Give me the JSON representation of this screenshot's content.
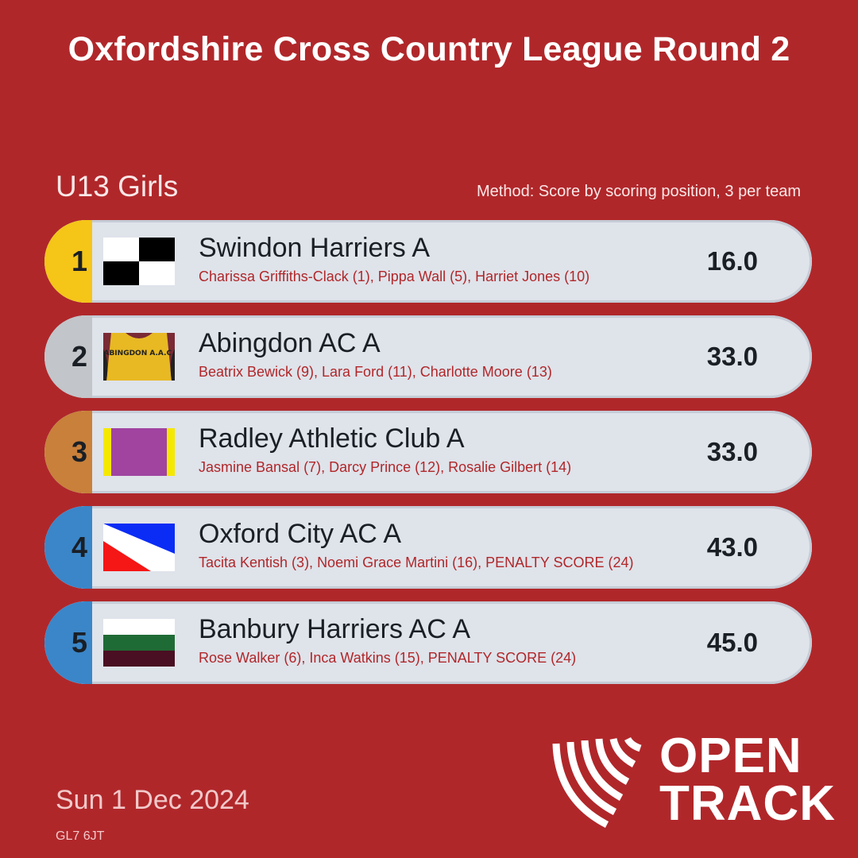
{
  "title": "Oxfordshire Cross Country League Round 2",
  "category": "U13 Girls",
  "method": "Method: Score by scoring position, 3 per team",
  "results": [
    {
      "position": "1",
      "position_color": "#f5c518",
      "flag": "swindon-flag",
      "team": "Swindon Harriers A",
      "members": "Charissa Griffiths-Clack (1), Pippa Wall (5), Harriet Jones (10)",
      "score": "16.0"
    },
    {
      "position": "2",
      "position_color": "#c2c5c9",
      "flag": "abingdon-vest",
      "flag_text": "ABINGDON A.A.C.",
      "team": "Abingdon AC A",
      "members": "Beatrix Bewick (9), Lara Ford (11), Charlotte Moore (13)",
      "score": "33.0"
    },
    {
      "position": "3",
      "position_color": "#c9803a",
      "flag": "radley-flag",
      "team": "Radley Athletic Club A",
      "members": "Jasmine Bansal (7), Darcy Prince (12), Rosalie Gilbert (14)",
      "score": "33.0"
    },
    {
      "position": "4",
      "position_color": "#3a86c8",
      "flag": "oxford-city-flag",
      "team": "Oxford City AC A",
      "members": "Tacita Kentish (3), Noemi Grace Martini (16), PENALTY SCORE (24)",
      "score": "43.0"
    },
    {
      "position": "5",
      "position_color": "#3a86c8",
      "flag": "banbury-flag",
      "team": "Banbury Harriers AC A",
      "members": "Rose Walker (6), Inca Watkins (15), PENALTY SCORE (24)",
      "score": "45.0"
    }
  ],
  "date": "Sun 1 Dec 2024",
  "postcode": "GL7 6JT",
  "logo": {
    "line1": "OPEN",
    "line2": "TRACK"
  },
  "colors": {
    "background": "#b0272a",
    "row": "#dfe3ea",
    "accent_text": "#b0272a"
  }
}
